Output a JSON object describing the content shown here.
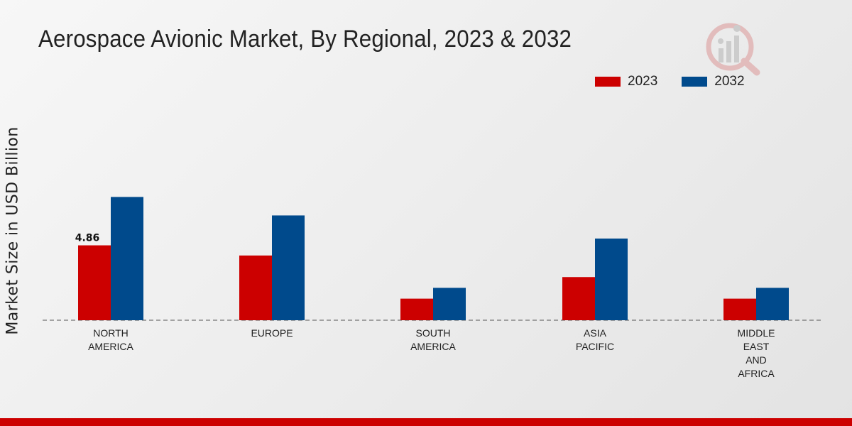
{
  "chart_data": {
    "type": "bar",
    "title": "Aerospace Avionic Market, By Regional, 2023 & 2032",
    "xlabel": "",
    "ylabel": "Market Size in USD Billion",
    "categories": [
      [
        "NORTH",
        "AMERICA"
      ],
      [
        "EUROPE"
      ],
      [
        "SOUTH",
        "AMERICA"
      ],
      [
        "ASIA",
        "PACIFIC"
      ],
      [
        "MIDDLE",
        "EAST",
        "AND",
        "AFRICA"
      ]
    ],
    "series": [
      {
        "name": "2023",
        "color": "#cc0000",
        "values": [
          4.86,
          4.2,
          1.4,
          2.8,
          1.4
        ]
      },
      {
        "name": "2032",
        "color": "#004a8c",
        "values": [
          8.0,
          6.8,
          2.1,
          5.3,
          2.1
        ]
      }
    ],
    "data_labels": [
      {
        "series": 0,
        "index": 0,
        "text": "4.86"
      }
    ],
    "ylim": [
      0,
      10
    ],
    "legend_position": "top-right",
    "grid": false
  }
}
